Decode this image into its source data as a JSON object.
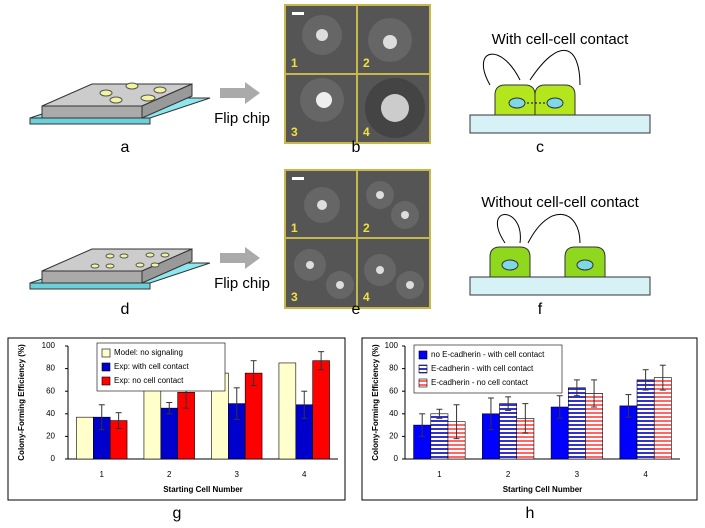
{
  "figure": {
    "panel_labels": [
      "a",
      "b",
      "c",
      "d",
      "e",
      "f",
      "g",
      "h"
    ],
    "flip_chip": [
      "Flip chip",
      "Flip chip"
    ],
    "contact_titles": [
      "With cell-cell contact",
      "Without cell-cell contact"
    ],
    "micrograph_numbers": [
      [
        "1",
        "2",
        "3",
        "4"
      ],
      [
        "1",
        "2",
        "3",
        "4"
      ]
    ]
  },
  "chart_data": [
    {
      "type": "bar",
      "ylabel": "Colony-Forming Efficiency (%)",
      "xlabel": "Starting Cell Number",
      "categories": [
        "1",
        "2",
        "3",
        "4"
      ],
      "ylim": [
        0,
        100
      ],
      "yticks": [
        0,
        20,
        40,
        60,
        80,
        100
      ],
      "legend": "top-left",
      "series": [
        {
          "name": "Model: no signaling",
          "color": "#ffffcc",
          "pattern": "solid",
          "values": [
            37,
            61,
            76,
            85
          ]
        },
        {
          "name": "Exp: with cell contact",
          "color": "#0000cc",
          "pattern": "solid",
          "values": [
            37,
            45,
            49,
            48
          ],
          "errors": [
            11,
            5,
            14,
            12
          ]
        },
        {
          "name": "Exp: no cell contact",
          "color": "#ff0000",
          "pattern": "solid",
          "values": [
            34,
            59,
            76,
            87
          ],
          "errors": [
            7,
            14,
            11,
            8
          ]
        }
      ]
    },
    {
      "type": "bar",
      "ylabel": "Colony-Forming Efficiency (%)",
      "xlabel": "Starting Cell Number",
      "categories": [
        "1",
        "2",
        "3",
        "4"
      ],
      "ylim": [
        0,
        100
      ],
      "yticks": [
        0,
        20,
        40,
        60,
        80,
        100
      ],
      "legend": "top-left",
      "series": [
        {
          "name": "no E-cadherin - with cell contact",
          "color": "#0000ff",
          "pattern": "solid",
          "values": [
            30,
            40,
            46,
            47
          ],
          "errors": [
            10,
            14,
            10,
            10
          ]
        },
        {
          "name": "E-cadherin - with cell contact",
          "color": "#3333cc",
          "pattern": "hstripe",
          "values": [
            40,
            49,
            63,
            70
          ],
          "errors": [
            4,
            6,
            7,
            9
          ]
        },
        {
          "name": "E-cadherin - no cell contact",
          "color": "#ff6666",
          "pattern": "hstripe",
          "values": [
            33,
            36,
            58,
            72
          ],
          "errors": [
            15,
            13,
            12,
            11
          ]
        }
      ]
    }
  ]
}
